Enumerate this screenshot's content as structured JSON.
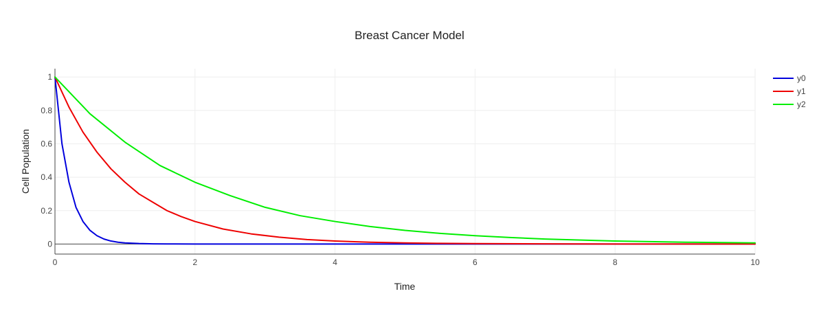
{
  "chart_data": {
    "type": "line",
    "title": "Breast Cancer Model",
    "xlabel": "Time",
    "ylabel": "Cell Population",
    "xlim": [
      0,
      10
    ],
    "ylim": [
      -0.06,
      1.05
    ],
    "x_ticks": [
      0,
      2,
      4,
      6,
      8,
      10
    ],
    "y_ticks": [
      0,
      0.2,
      0.4,
      0.6,
      0.8,
      1
    ],
    "grid": true,
    "legend_placement": "top-right",
    "series": [
      {
        "name": "y0",
        "color": "#0000dd",
        "x": [
          0,
          0.1,
          0.2,
          0.3,
          0.4,
          0.5,
          0.6,
          0.7,
          0.8,
          0.9,
          1.0,
          1.2,
          1.4,
          1.6,
          2,
          3,
          4,
          5,
          6,
          7,
          8,
          9,
          10
        ],
        "y": [
          1,
          0.6,
          0.37,
          0.22,
          0.135,
          0.082,
          0.05,
          0.03,
          0.018,
          0.011,
          0.007,
          0.003,
          0.001,
          0.0005,
          0.0001,
          0,
          0,
          0,
          0,
          0,
          0,
          0,
          0
        ]
      },
      {
        "name": "y1",
        "color": "#ee0000",
        "x": [
          0,
          0.2,
          0.4,
          0.6,
          0.8,
          1.0,
          1.2,
          1.4,
          1.6,
          1.8,
          2.0,
          2.4,
          2.8,
          3.2,
          3.6,
          4.0,
          4.5,
          5,
          5.5,
          6,
          7,
          8,
          9,
          10
        ],
        "y": [
          1,
          0.82,
          0.67,
          0.55,
          0.45,
          0.37,
          0.3,
          0.25,
          0.2,
          0.165,
          0.135,
          0.09,
          0.061,
          0.041,
          0.027,
          0.018,
          0.011,
          0.007,
          0.004,
          0.0025,
          0.001,
          0.0003,
          0.0001,
          0
        ]
      },
      {
        "name": "y2",
        "color": "#00ee00",
        "x": [
          0,
          0.5,
          1.0,
          1.5,
          2.0,
          2.5,
          3.0,
          3.5,
          4.0,
          4.5,
          5.0,
          5.5,
          6.0,
          6.5,
          7.0,
          8.0,
          9.0,
          10.0
        ],
        "y": [
          1,
          0.78,
          0.61,
          0.47,
          0.37,
          0.29,
          0.22,
          0.17,
          0.135,
          0.105,
          0.082,
          0.064,
          0.05,
          0.039,
          0.03,
          0.018,
          0.011,
          0.007
        ]
      }
    ]
  }
}
